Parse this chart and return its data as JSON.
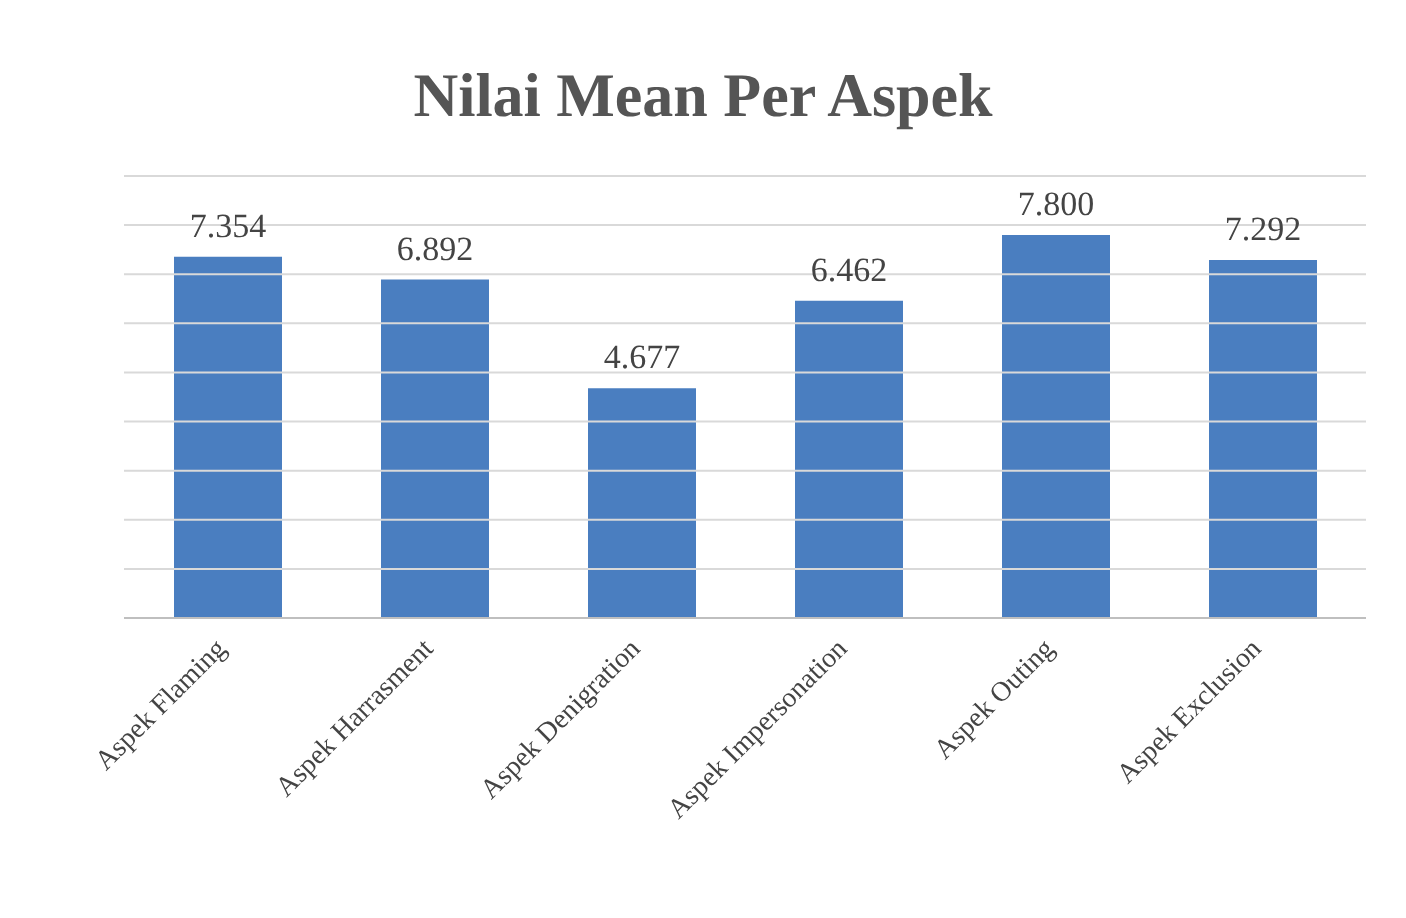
{
  "chart_data": {
    "type": "bar",
    "title": "Nilai Mean Per Aspek",
    "categories": [
      "Aspek Flaming",
      "Aspek Harrasment",
      "Aspek Denigration",
      "Aspek Impersonation",
      "Aspek Outing",
      "Aspek Exclusion"
    ],
    "values": [
      7.354,
      6.892,
      4.677,
      6.462,
      7.8,
      7.292
    ],
    "value_labels": [
      "7.354",
      "6.892",
      "4.677",
      "6.462",
      "7.800",
      "7.292"
    ],
    "color": "#4a7ec0",
    "ylim": [
      0,
      9
    ],
    "yticks": [
      {
        "value": 0,
        "label": null
      },
      {
        "value": 1,
        "label": null
      },
      {
        "value": 2,
        "label": null
      },
      {
        "value": 3,
        "label": null
      },
      {
        "value": 4,
        "label": null
      },
      {
        "value": 5,
        "label": null
      },
      {
        "value": 6,
        "label": null
      },
      {
        "value": 7,
        "label": null
      },
      {
        "value": 8,
        "label": null
      },
      {
        "value": 9,
        "label": null
      }
    ],
    "grid": "y",
    "tick_labels": "x"
  }
}
